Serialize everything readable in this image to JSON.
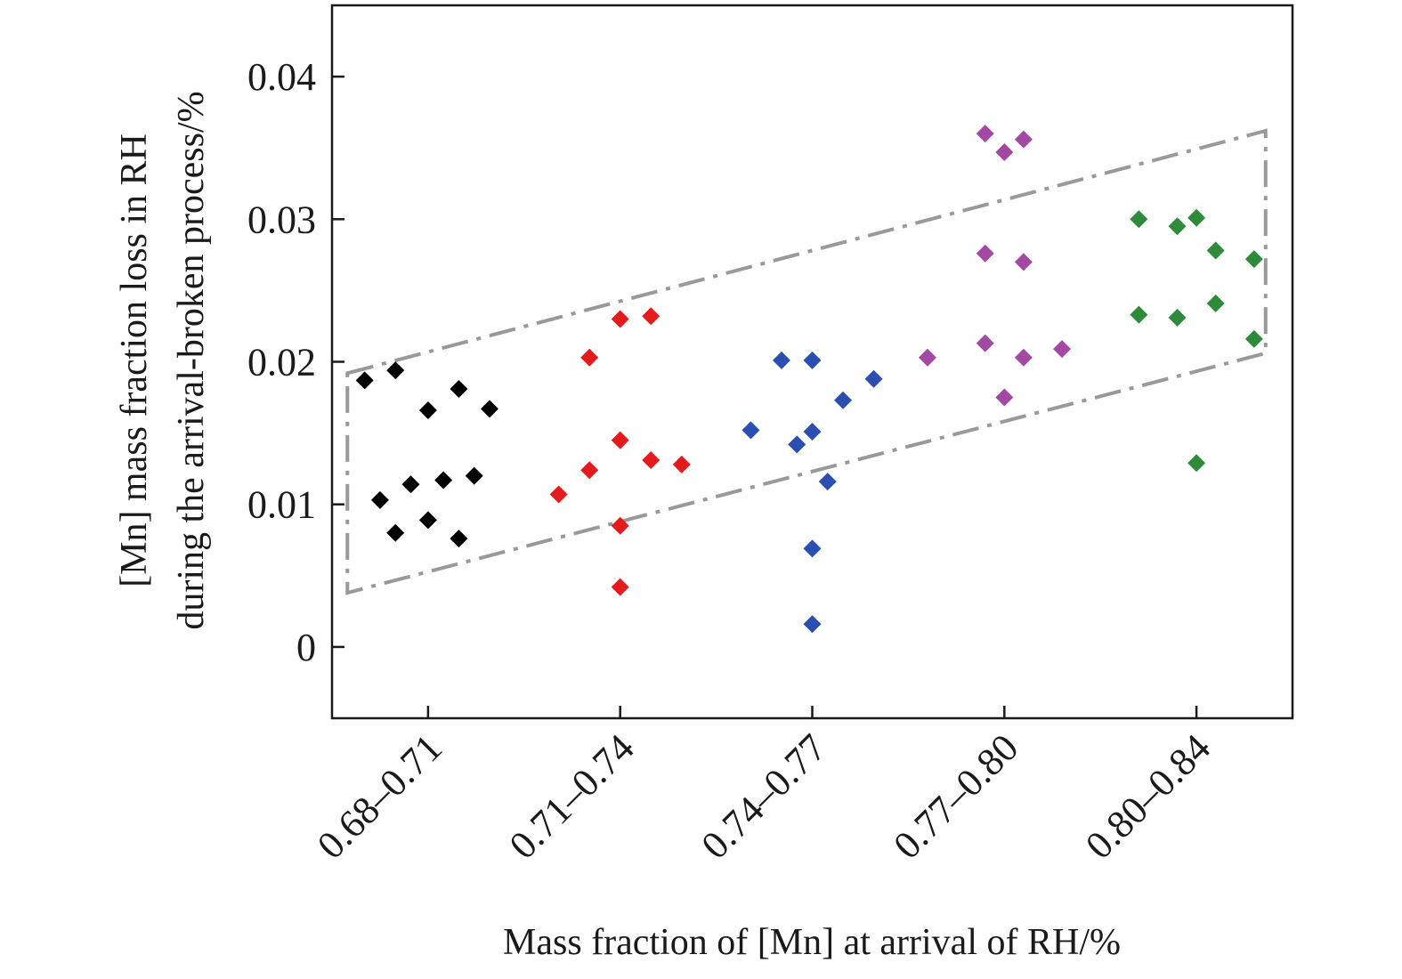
{
  "chart_data": {
    "type": "scatter",
    "title": "",
    "xlabel": "Mass fraction of [Mn] at arrival of RH/%",
    "ylabel_lines": [
      "[Mn] mass fraction loss in RH",
      "during the arrival-broken process/%"
    ],
    "categories": [
      "0.68–0.71",
      "0.71–0.74",
      "0.74–0.77",
      "0.77–0.80",
      "0.80–0.84"
    ],
    "xlim": [
      -0.5,
      4.5
    ],
    "ylim": [
      -0.005,
      0.045
    ],
    "yticks": [
      0,
      0.01,
      0.02,
      0.03,
      0.04
    ],
    "ytick_labels": [
      "0",
      "0.01",
      "0.02",
      "0.03",
      "0.04"
    ],
    "grid": false,
    "marker": "diamond",
    "series": [
      {
        "color": "#000000",
        "points": [
          {
            "x": -0.33,
            "y": 0.0187
          },
          {
            "x": -0.17,
            "y": 0.0194
          },
          {
            "x": 0.0,
            "y": 0.0166
          },
          {
            "x": 0.16,
            "y": 0.0181
          },
          {
            "x": 0.32,
            "y": 0.0167
          },
          {
            "x": -0.25,
            "y": 0.0103
          },
          {
            "x": -0.09,
            "y": 0.0114
          },
          {
            "x": 0.08,
            "y": 0.0117
          },
          {
            "x": 0.24,
            "y": 0.012
          },
          {
            "x": -0.17,
            "y": 0.008
          },
          {
            "x": 0.0,
            "y": 0.0089
          },
          {
            "x": 0.16,
            "y": 0.0076
          }
        ]
      },
      {
        "color": "#e41a1c",
        "points": [
          {
            "x": 0.84,
            "y": 0.0203
          },
          {
            "x": 1.0,
            "y": 0.023
          },
          {
            "x": 1.16,
            "y": 0.0232
          },
          {
            "x": 0.68,
            "y": 0.0107
          },
          {
            "x": 0.84,
            "y": 0.0124
          },
          {
            "x": 1.0,
            "y": 0.0145
          },
          {
            "x": 1.16,
            "y": 0.0131
          },
          {
            "x": 1.32,
            "y": 0.0128
          },
          {
            "x": 1.0,
            "y": 0.0085
          },
          {
            "x": 1.0,
            "y": 0.0042
          }
        ]
      },
      {
        "color": "#2b4fb0",
        "points": [
          {
            "x": 1.84,
            "y": 0.0201
          },
          {
            "x": 2.0,
            "y": 0.0201
          },
          {
            "x": 1.68,
            "y": 0.0152
          },
          {
            "x": 1.92,
            "y": 0.0142
          },
          {
            "x": 2.0,
            "y": 0.0151
          },
          {
            "x": 2.16,
            "y": 0.0173
          },
          {
            "x": 2.32,
            "y": 0.0188
          },
          {
            "x": 2.08,
            "y": 0.0116
          },
          {
            "x": 2.0,
            "y": 0.0069
          },
          {
            "x": 2.0,
            "y": 0.0016
          }
        ]
      },
      {
        "color": "#a349a4",
        "points": [
          {
            "x": 2.9,
            "y": 0.036
          },
          {
            "x": 3.0,
            "y": 0.0347
          },
          {
            "x": 3.1,
            "y": 0.0356
          },
          {
            "x": 2.9,
            "y": 0.0276
          },
          {
            "x": 3.1,
            "y": 0.027
          },
          {
            "x": 2.6,
            "y": 0.0203
          },
          {
            "x": 2.9,
            "y": 0.0213
          },
          {
            "x": 3.1,
            "y": 0.0203
          },
          {
            "x": 3.3,
            "y": 0.0209
          },
          {
            "x": 3.0,
            "y": 0.0175
          }
        ]
      },
      {
        "color": "#2e8b3a",
        "points": [
          {
            "x": 3.7,
            "y": 0.03
          },
          {
            "x": 3.9,
            "y": 0.0295
          },
          {
            "x": 4.0,
            "y": 0.0301
          },
          {
            "x": 4.1,
            "y": 0.0278
          },
          {
            "x": 4.3,
            "y": 0.0272
          },
          {
            "x": 3.7,
            "y": 0.0233
          },
          {
            "x": 3.9,
            "y": 0.0231
          },
          {
            "x": 4.1,
            "y": 0.0241
          },
          {
            "x": 4.3,
            "y": 0.0216
          },
          {
            "x": 4.0,
            "y": 0.0129
          }
        ]
      }
    ],
    "envelope": {
      "style": "dash-dot",
      "color": "#999999",
      "vertices": [
        {
          "x": -0.42,
          "y": 0.0192
        },
        {
          "x": 4.36,
          "y": 0.0362
        },
        {
          "x": 4.36,
          "y": 0.0206
        },
        {
          "x": -0.42,
          "y": 0.0038
        }
      ]
    }
  }
}
